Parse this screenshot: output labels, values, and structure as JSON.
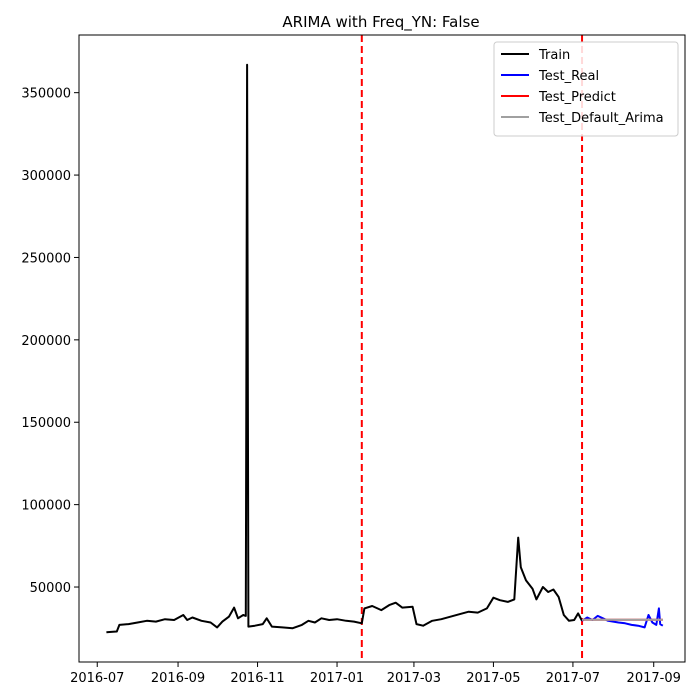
{
  "chart_data": {
    "type": "line",
    "title": "ARIMA with Freq_YN: False",
    "xlabel": "",
    "ylabel": "",
    "x_range": [
      "2016-06-17",
      "2017-09-25"
    ],
    "ylim": [
      4500,
      385000
    ],
    "x_tick_labels": [
      "2016-07",
      "2016-09",
      "2016-11",
      "2017-01",
      "2017-03",
      "2017-05",
      "2017-07",
      "2017-09"
    ],
    "x_ticks": [
      "2016-07-01",
      "2016-09-01",
      "2016-11-01",
      "2017-01-01",
      "2017-03-01",
      "2017-05-01",
      "2017-07-01",
      "2017-09-01"
    ],
    "y_ticks": [
      50000,
      100000,
      150000,
      200000,
      250000,
      300000,
      350000
    ],
    "y_tick_labels": [
      "50000",
      "100000",
      "150000",
      "200000",
      "250000",
      "300000",
      "350000"
    ],
    "grid": false,
    "legend_position": "top-right",
    "vlines": [
      {
        "x": "2017-01-20",
        "color": "#ff0000",
        "style": "dashed"
      },
      {
        "x": "2017-07-08",
        "color": "#ff0000",
        "style": "dashed"
      }
    ],
    "series": [
      {
        "name": "Train",
        "color": "#000000",
        "points": [
          [
            "2016-07-08",
            22500
          ],
          [
            "2016-07-13",
            22800
          ],
          [
            "2016-07-16",
            23000
          ],
          [
            "2016-07-18",
            27000
          ],
          [
            "2016-07-25",
            27500
          ],
          [
            "2016-08-01",
            28500
          ],
          [
            "2016-08-08",
            29500
          ],
          [
            "2016-08-15",
            29000
          ],
          [
            "2016-08-22",
            30500
          ],
          [
            "2016-08-29",
            30000
          ],
          [
            "2016-09-05",
            33000
          ],
          [
            "2016-09-08",
            30000
          ],
          [
            "2016-09-12",
            31500
          ],
          [
            "2016-09-19",
            29500
          ],
          [
            "2016-09-26",
            28500
          ],
          [
            "2016-10-01",
            25500
          ],
          [
            "2016-10-05",
            29000
          ],
          [
            "2016-10-10",
            32000
          ],
          [
            "2016-10-14",
            37500
          ],
          [
            "2016-10-17",
            31000
          ],
          [
            "2016-10-21",
            33000
          ],
          [
            "2016-10-23",
            32500
          ],
          [
            "2016-10-24",
            367000
          ],
          [
            "2016-10-25",
            26000
          ],
          [
            "2016-10-30",
            26500
          ],
          [
            "2016-11-05",
            27500
          ],
          [
            "2016-11-08",
            31000
          ],
          [
            "2016-11-12",
            26000
          ],
          [
            "2016-11-20",
            25500
          ],
          [
            "2016-11-28",
            25000
          ],
          [
            "2016-12-05",
            27000
          ],
          [
            "2016-12-10",
            29500
          ],
          [
            "2016-12-15",
            28500
          ],
          [
            "2016-12-20",
            31000
          ],
          [
            "2016-12-26",
            30000
          ],
          [
            "2017-01-01",
            30500
          ],
          [
            "2017-01-08",
            29500
          ],
          [
            "2017-01-14",
            29000
          ],
          [
            "2017-01-20",
            28000
          ],
          [
            "2017-01-22",
            37000
          ],
          [
            "2017-01-28",
            38500
          ],
          [
            "2017-02-04",
            36000
          ],
          [
            "2017-02-10",
            39000
          ],
          [
            "2017-02-15",
            40500
          ],
          [
            "2017-02-20",
            37500
          ],
          [
            "2017-02-28",
            38000
          ],
          [
            "2017-03-03",
            27500
          ],
          [
            "2017-03-08",
            26500
          ],
          [
            "2017-03-15",
            29500
          ],
          [
            "2017-03-22",
            30500
          ],
          [
            "2017-03-29",
            32000
          ],
          [
            "2017-04-05",
            33500
          ],
          [
            "2017-04-12",
            35000
          ],
          [
            "2017-04-19",
            34500
          ],
          [
            "2017-04-26",
            37000
          ],
          [
            "2017-05-01",
            43500
          ],
          [
            "2017-05-06",
            42000
          ],
          [
            "2017-05-12",
            41000
          ],
          [
            "2017-05-17",
            42500
          ],
          [
            "2017-05-20",
            80000
          ],
          [
            "2017-05-22",
            62000
          ],
          [
            "2017-05-26",
            54000
          ],
          [
            "2017-05-31",
            49000
          ],
          [
            "2017-06-03",
            42500
          ],
          [
            "2017-06-08",
            50000
          ],
          [
            "2017-06-12",
            47000
          ],
          [
            "2017-06-16",
            48500
          ],
          [
            "2017-06-20",
            44000
          ],
          [
            "2017-06-24",
            33000
          ],
          [
            "2017-06-28",
            29500
          ],
          [
            "2017-07-02",
            30000
          ],
          [
            "2017-07-05",
            34000
          ],
          [
            "2017-07-08",
            29500
          ]
        ]
      },
      {
        "name": "Test_Real",
        "color": "#0000ff",
        "points": [
          [
            "2017-07-08",
            29500
          ],
          [
            "2017-07-12",
            31500
          ],
          [
            "2017-07-16",
            30000
          ],
          [
            "2017-07-20",
            32500
          ],
          [
            "2017-07-24",
            31000
          ],
          [
            "2017-07-28",
            29500
          ],
          [
            "2017-08-01",
            29000
          ],
          [
            "2017-08-05",
            28500
          ],
          [
            "2017-08-10",
            28000
          ],
          [
            "2017-08-15",
            27000
          ],
          [
            "2017-08-20",
            26500
          ],
          [
            "2017-08-25",
            25500
          ],
          [
            "2017-08-28",
            33000
          ],
          [
            "2017-08-31",
            28500
          ],
          [
            "2017-09-03",
            27000
          ],
          [
            "2017-09-05",
            37000
          ],
          [
            "2017-09-06",
            27500
          ],
          [
            "2017-09-08",
            26500
          ]
        ]
      },
      {
        "name": "Test_Predict",
        "color": "#ff0000",
        "points": [
          [
            "2017-07-08",
            30200
          ],
          [
            "2017-09-08",
            30200
          ]
        ]
      },
      {
        "name": "Test_Default_Arima",
        "color": "#a0a0a0",
        "points": [
          [
            "2017-07-08",
            30100
          ],
          [
            "2017-09-08",
            30100
          ]
        ]
      }
    ]
  }
}
